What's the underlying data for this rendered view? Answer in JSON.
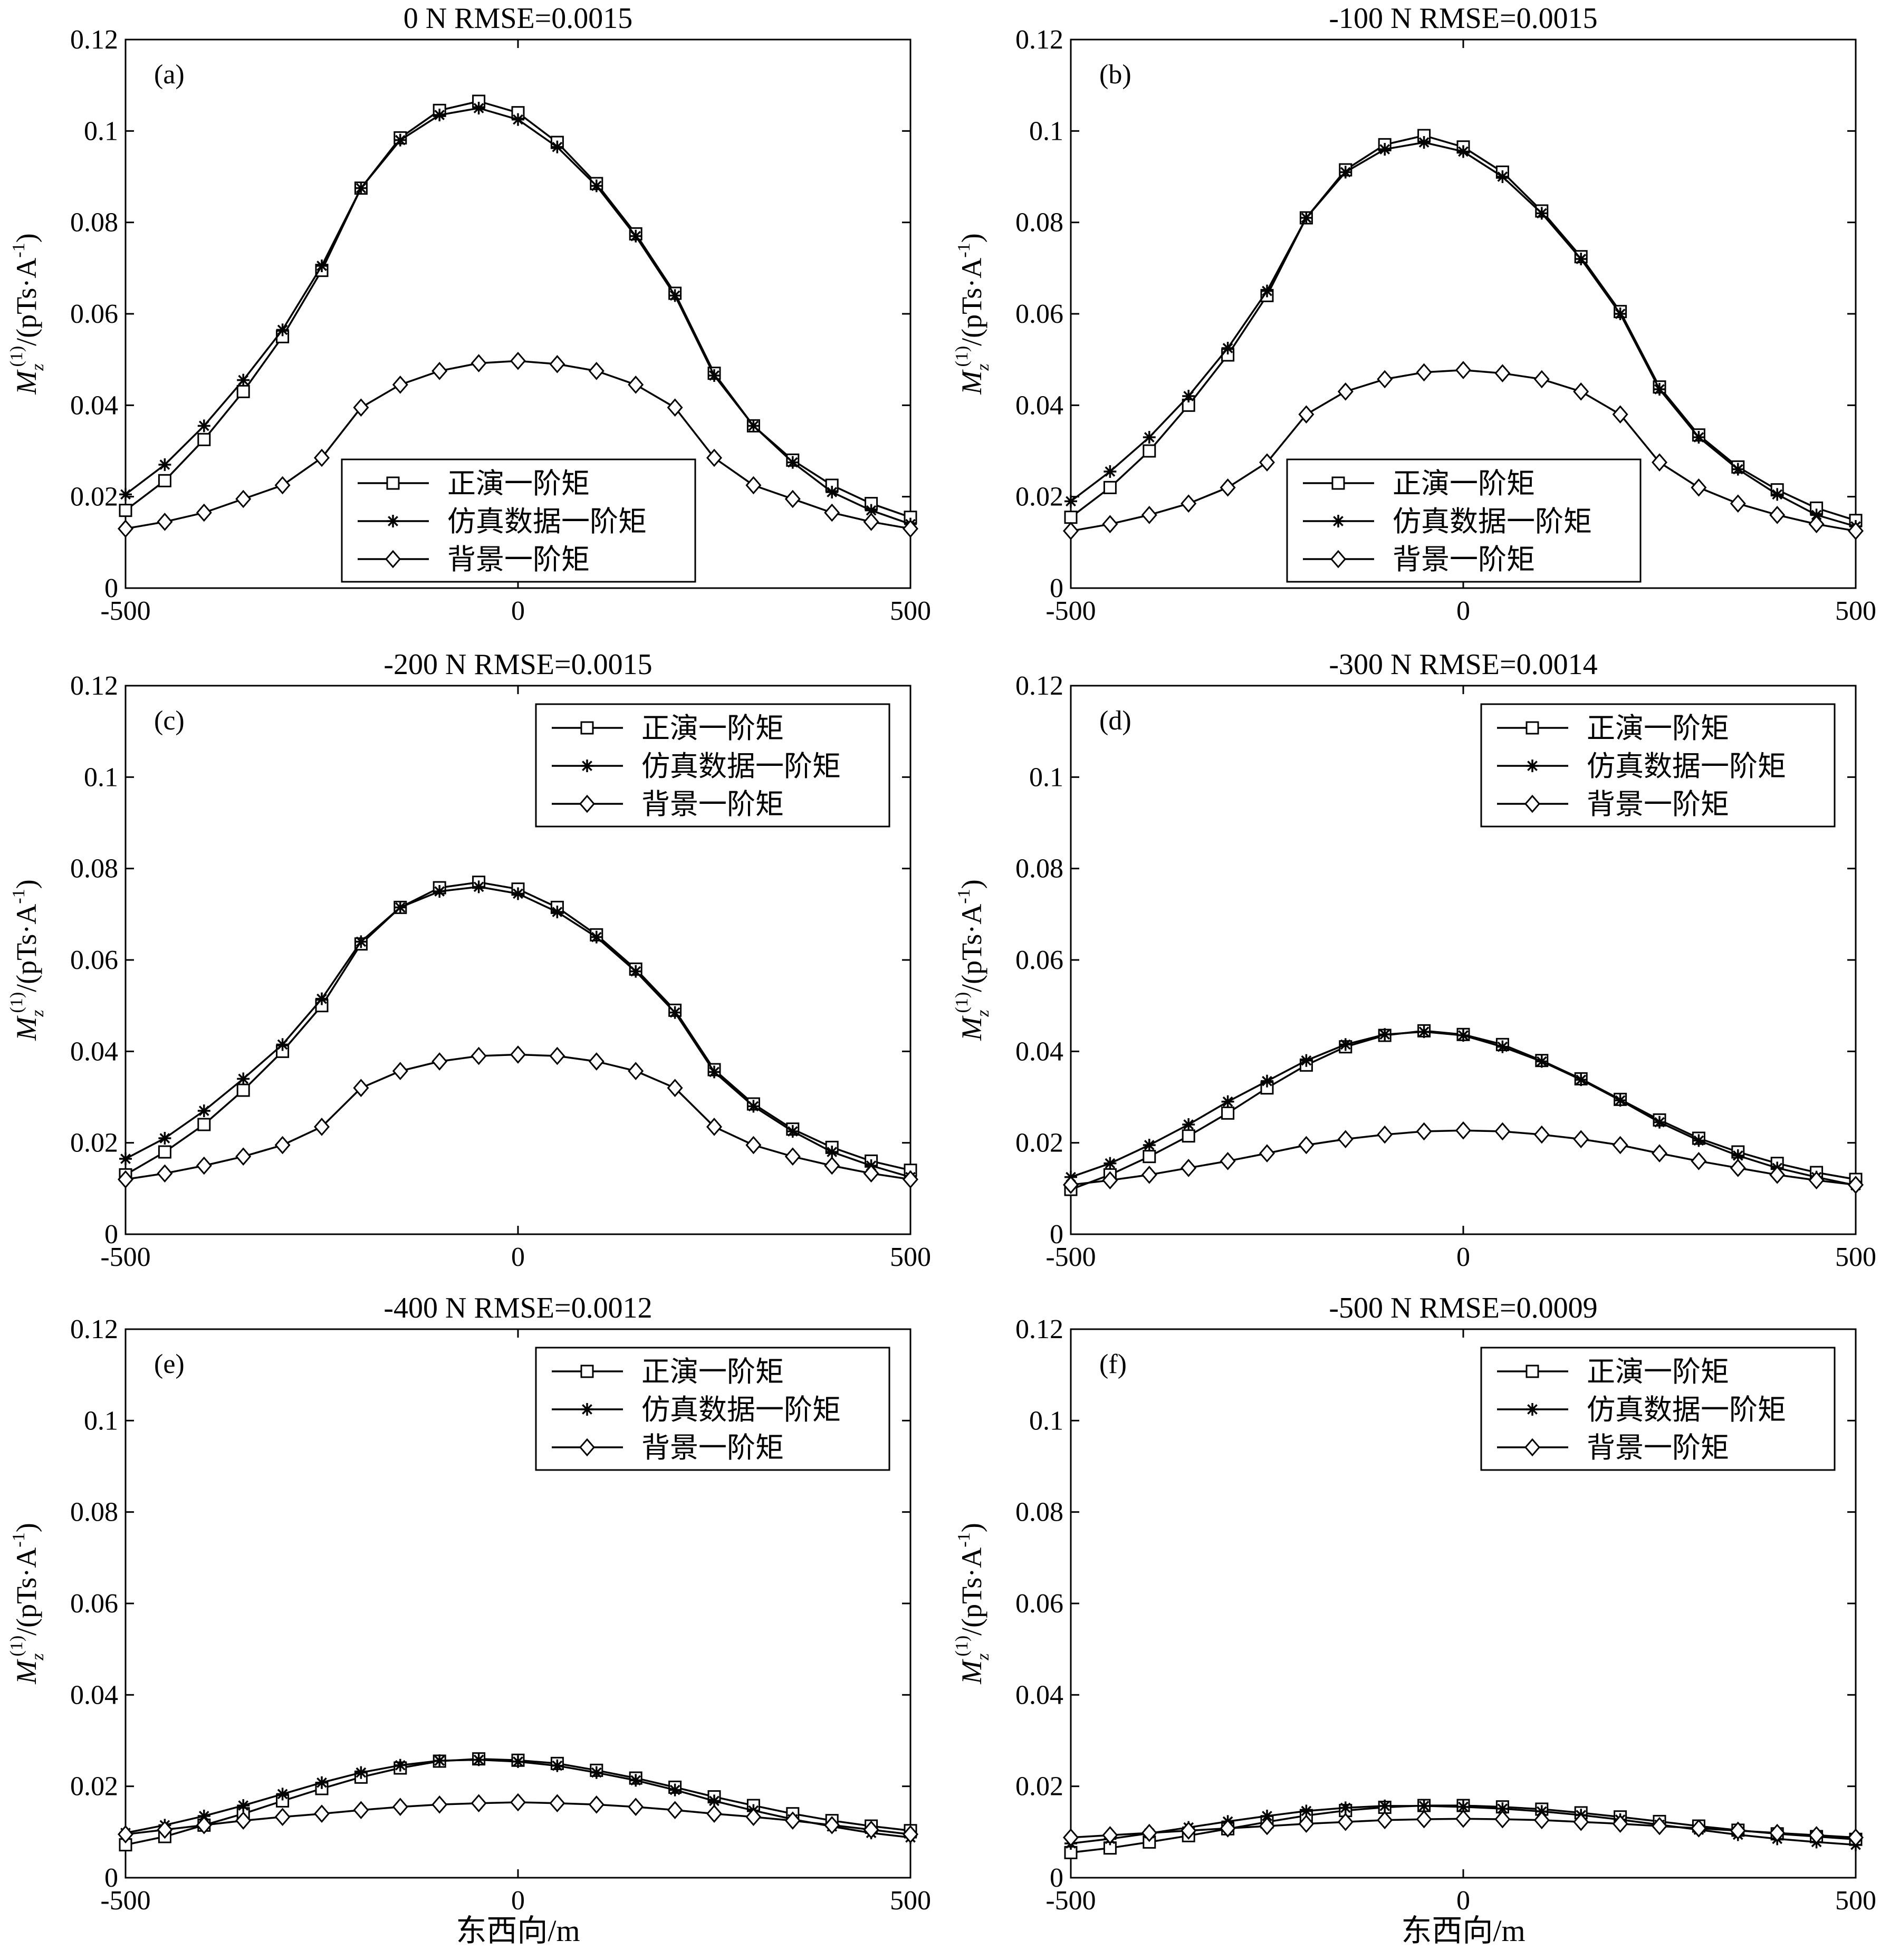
{
  "figure": {
    "x_axis_label": "东西向/m",
    "y_axis_label": {
      "symbol": "M",
      "subscript": "z",
      "superscript": "(1)",
      "unit_prefix": "/(pTs·A",
      "unit_exponent": "-1",
      "unit_suffix": ")"
    }
  },
  "chart_data": [
    {
      "type": "line",
      "panel_label": "(a)",
      "title": "0  N  RMSE=0.0015",
      "xlabel": "",
      "xlim": [
        -500,
        500
      ],
      "ylim": [
        0,
        0.12
      ],
      "xticks": [
        "-500",
        "0",
        "500"
      ],
      "yticks": [
        "0",
        "0.02",
        "0.04",
        "0.06",
        "0.08",
        "0.1",
        "0.12"
      ],
      "legend_position": "bottom-center",
      "x": [
        -500,
        -450,
        -400,
        -350,
        -300,
        -250,
        -200,
        -150,
        -100,
        -50,
        0,
        50,
        100,
        150,
        200,
        250,
        300,
        350,
        400,
        450,
        500
      ],
      "series": [
        {
          "name": "正演一阶矩",
          "marker": "square",
          "values": [
            0.017,
            0.0235,
            0.0325,
            0.043,
            0.055,
            0.0695,
            0.0875,
            0.0985,
            0.1045,
            0.1065,
            0.104,
            0.0975,
            0.0885,
            0.0775,
            0.0645,
            0.047,
            0.0355,
            0.028,
            0.0225,
            0.0185,
            0.0155
          ]
        },
        {
          "name": "仿真数据一阶矩",
          "marker": "star",
          "values": [
            0.0205,
            0.027,
            0.0355,
            0.0455,
            0.0565,
            0.0705,
            0.0875,
            0.098,
            0.1035,
            0.105,
            0.1025,
            0.0965,
            0.088,
            0.077,
            0.064,
            0.0465,
            0.0355,
            0.0275,
            0.021,
            0.017,
            0.014
          ]
        },
        {
          "name": "背景一阶矩",
          "marker": "diamond",
          "values": [
            0.013,
            0.0145,
            0.0165,
            0.0195,
            0.0225,
            0.0285,
            0.0395,
            0.0445,
            0.0475,
            0.0492,
            0.0497,
            0.049,
            0.0475,
            0.0445,
            0.0395,
            0.0285,
            0.0225,
            0.0195,
            0.0165,
            0.0145,
            0.013
          ]
        }
      ]
    },
    {
      "type": "line",
      "panel_label": "(b)",
      "title": "-100 N  RMSE=0.0015",
      "xlabel": "",
      "xlim": [
        -500,
        500
      ],
      "ylim": [
        0,
        0.12
      ],
      "xticks": [
        "-500",
        "0",
        "500"
      ],
      "yticks": [
        "0",
        "0.02",
        "0.04",
        "0.06",
        "0.08",
        "0.1",
        "0.12"
      ],
      "legend_position": "bottom-center",
      "x": [
        -500,
        -450,
        -400,
        -350,
        -300,
        -250,
        -200,
        -150,
        -100,
        -50,
        0,
        50,
        100,
        150,
        200,
        250,
        300,
        350,
        400,
        450,
        500
      ],
      "series": [
        {
          "name": "正演一阶矩",
          "marker": "square",
          "values": [
            0.0155,
            0.022,
            0.03,
            0.04,
            0.051,
            0.064,
            0.081,
            0.0915,
            0.097,
            0.099,
            0.0965,
            0.091,
            0.0825,
            0.0725,
            0.0605,
            0.044,
            0.0335,
            0.0265,
            0.0215,
            0.0175,
            0.0148
          ]
        },
        {
          "name": "仿真数据一阶矩",
          "marker": "star",
          "values": [
            0.019,
            0.0255,
            0.033,
            0.042,
            0.0525,
            0.065,
            0.081,
            0.091,
            0.096,
            0.0975,
            0.0955,
            0.09,
            0.082,
            0.072,
            0.06,
            0.0435,
            0.033,
            0.026,
            0.0205,
            0.016,
            0.0135
          ]
        },
        {
          "name": "背景一阶矩",
          "marker": "diamond",
          "values": [
            0.0125,
            0.014,
            0.016,
            0.0185,
            0.022,
            0.0275,
            0.038,
            0.043,
            0.0457,
            0.0472,
            0.0477,
            0.047,
            0.0457,
            0.043,
            0.038,
            0.0275,
            0.022,
            0.0185,
            0.016,
            0.014,
            0.0125
          ]
        }
      ]
    },
    {
      "type": "line",
      "panel_label": "(c)",
      "title": "-200 N  RMSE=0.0015",
      "xlabel": "",
      "xlim": [
        -500,
        500
      ],
      "ylim": [
        0,
        0.12
      ],
      "xticks": [
        "-500",
        "0",
        "500"
      ],
      "yticks": [
        "0",
        "0.02",
        "0.04",
        "0.06",
        "0.08",
        "0.1",
        "0.12"
      ],
      "legend_position": "top-right",
      "x": [
        -500,
        -450,
        -400,
        -350,
        -300,
        -250,
        -200,
        -150,
        -100,
        -50,
        0,
        50,
        100,
        150,
        200,
        250,
        300,
        350,
        400,
        450,
        500
      ],
      "series": [
        {
          "name": "正演一阶矩",
          "marker": "square",
          "values": [
            0.013,
            0.018,
            0.024,
            0.0315,
            0.04,
            0.05,
            0.0635,
            0.0715,
            0.0758,
            0.077,
            0.0755,
            0.0715,
            0.0655,
            0.058,
            0.049,
            0.036,
            0.0285,
            0.023,
            0.019,
            0.016,
            0.014
          ]
        },
        {
          "name": "仿真数据一阶矩",
          "marker": "star",
          "values": [
            0.0165,
            0.021,
            0.027,
            0.034,
            0.0415,
            0.0515,
            0.064,
            0.0715,
            0.075,
            0.076,
            0.0745,
            0.0705,
            0.065,
            0.0575,
            0.0485,
            0.0355,
            0.028,
            0.0225,
            0.018,
            0.015,
            0.0125
          ]
        },
        {
          "name": "背景一阶矩",
          "marker": "diamond",
          "values": [
            0.012,
            0.0133,
            0.015,
            0.017,
            0.0195,
            0.0235,
            0.032,
            0.0357,
            0.0378,
            0.039,
            0.0393,
            0.039,
            0.0378,
            0.0357,
            0.032,
            0.0235,
            0.0195,
            0.017,
            0.015,
            0.0133,
            0.012
          ]
        }
      ]
    },
    {
      "type": "line",
      "panel_label": "(d)",
      "title": "-300 N  RMSE=0.0014",
      "xlabel": "",
      "xlim": [
        -500,
        500
      ],
      "ylim": [
        0,
        0.12
      ],
      "xticks": [
        "-500",
        "0",
        "500"
      ],
      "yticks": [
        "0",
        "0.02",
        "0.04",
        "0.06",
        "0.08",
        "0.1",
        "0.12"
      ],
      "legend_position": "top-right",
      "x": [
        -500,
        -450,
        -400,
        -350,
        -300,
        -250,
        -200,
        -150,
        -100,
        -50,
        0,
        50,
        100,
        150,
        200,
        250,
        300,
        350,
        400,
        450,
        500
      ],
      "series": [
        {
          "name": "正演一阶矩",
          "marker": "square",
          "values": [
            0.0098,
            0.013,
            0.017,
            0.0215,
            0.0265,
            0.032,
            0.037,
            0.041,
            0.0435,
            0.0445,
            0.0437,
            0.0415,
            0.038,
            0.034,
            0.0295,
            0.025,
            0.021,
            0.018,
            0.0155,
            0.0135,
            0.012
          ]
        },
        {
          "name": "仿真数据一阶矩",
          "marker": "star",
          "values": [
            0.0125,
            0.0155,
            0.0195,
            0.024,
            0.029,
            0.0335,
            0.038,
            0.0415,
            0.0437,
            0.0443,
            0.0435,
            0.041,
            0.0378,
            0.0338,
            0.0293,
            0.0245,
            0.0205,
            0.0172,
            0.0145,
            0.0125,
            0.0107
          ]
        },
        {
          "name": "背景一阶矩",
          "marker": "diamond",
          "values": [
            0.0108,
            0.0118,
            0.013,
            0.0145,
            0.016,
            0.0177,
            0.0195,
            0.0208,
            0.0218,
            0.0225,
            0.0227,
            0.0225,
            0.0218,
            0.0208,
            0.0195,
            0.0177,
            0.016,
            0.0145,
            0.013,
            0.0118,
            0.0108
          ]
        }
      ]
    },
    {
      "type": "line",
      "panel_label": "(e)",
      "title": "-400 N  RMSE=0.0012",
      "xlabel": "东西向/m",
      "xlim": [
        -500,
        500
      ],
      "ylim": [
        0,
        0.12
      ],
      "xticks": [
        "-500",
        "0",
        "500"
      ],
      "yticks": [
        "0",
        "0.02",
        "0.04",
        "0.06",
        "0.08",
        "0.1",
        "0.12"
      ],
      "legend_position": "top-right",
      "x": [
        -500,
        -450,
        -400,
        -350,
        -300,
        -250,
        -200,
        -150,
        -100,
        -50,
        0,
        50,
        100,
        150,
        200,
        250,
        300,
        350,
        400,
        450,
        500
      ],
      "series": [
        {
          "name": "正演一阶矩",
          "marker": "square",
          "values": [
            0.0072,
            0.009,
            0.0115,
            0.014,
            0.0168,
            0.0195,
            0.022,
            0.024,
            0.0255,
            0.026,
            0.0257,
            0.025,
            0.0235,
            0.0218,
            0.0198,
            0.0177,
            0.0158,
            0.014,
            0.0125,
            0.0113,
            0.0103
          ]
        },
        {
          "name": "仿真数据一阶矩",
          "marker": "star",
          "values": [
            0.0098,
            0.0115,
            0.0135,
            0.0158,
            0.0183,
            0.0208,
            0.023,
            0.0246,
            0.0256,
            0.0258,
            0.0254,
            0.0245,
            0.023,
            0.0213,
            0.0192,
            0.0168,
            0.0147,
            0.0128,
            0.0112,
            0.0098,
            0.0088
          ]
        },
        {
          "name": "背景一阶矩",
          "marker": "diamond",
          "values": [
            0.0095,
            0.0105,
            0.0115,
            0.0125,
            0.0133,
            0.014,
            0.0148,
            0.0155,
            0.016,
            0.0163,
            0.0165,
            0.0163,
            0.016,
            0.0155,
            0.0148,
            0.014,
            0.0133,
            0.0125,
            0.0115,
            0.0105,
            0.0095
          ]
        }
      ]
    },
    {
      "type": "line",
      "panel_label": "(f)",
      "title": "-500 N  RMSE=0.0009",
      "xlabel": "东西向/m",
      "xlim": [
        -500,
        500
      ],
      "ylim": [
        0,
        0.12
      ],
      "xticks": [
        "-500",
        "0",
        "500"
      ],
      "yticks": [
        "0",
        "0.02",
        "0.04",
        "0.06",
        "0.08",
        "0.1",
        "0.12"
      ],
      "legend_position": "top-right",
      "x": [
        -500,
        -450,
        -400,
        -350,
        -300,
        -250,
        -200,
        -150,
        -100,
        -50,
        0,
        50,
        100,
        150,
        200,
        250,
        300,
        350,
        400,
        450,
        500
      ],
      "series": [
        {
          "name": "正演一阶矩",
          "marker": "square",
          "values": [
            0.0055,
            0.0065,
            0.0078,
            0.0092,
            0.0107,
            0.0122,
            0.0136,
            0.0147,
            0.0154,
            0.0158,
            0.0158,
            0.0155,
            0.015,
            0.0142,
            0.0133,
            0.0123,
            0.0113,
            0.0104,
            0.0096,
            0.009,
            0.0084
          ]
        },
        {
          "name": "仿真数据一阶矩",
          "marker": "star",
          "values": [
            0.0075,
            0.0085,
            0.0097,
            0.011,
            0.0123,
            0.0135,
            0.0146,
            0.0153,
            0.0157,
            0.0157,
            0.0155,
            0.0151,
            0.0145,
            0.0137,
            0.0127,
            0.0116,
            0.0105,
            0.0094,
            0.0085,
            0.0078,
            0.0072
          ]
        },
        {
          "name": "背景一阶矩",
          "marker": "diamond",
          "values": [
            0.0088,
            0.0093,
            0.0098,
            0.0103,
            0.0108,
            0.0113,
            0.0118,
            0.0122,
            0.0126,
            0.0128,
            0.0129,
            0.0128,
            0.0126,
            0.0122,
            0.0118,
            0.0113,
            0.0108,
            0.0103,
            0.0098,
            0.0093,
            0.0088
          ]
        }
      ]
    }
  ]
}
